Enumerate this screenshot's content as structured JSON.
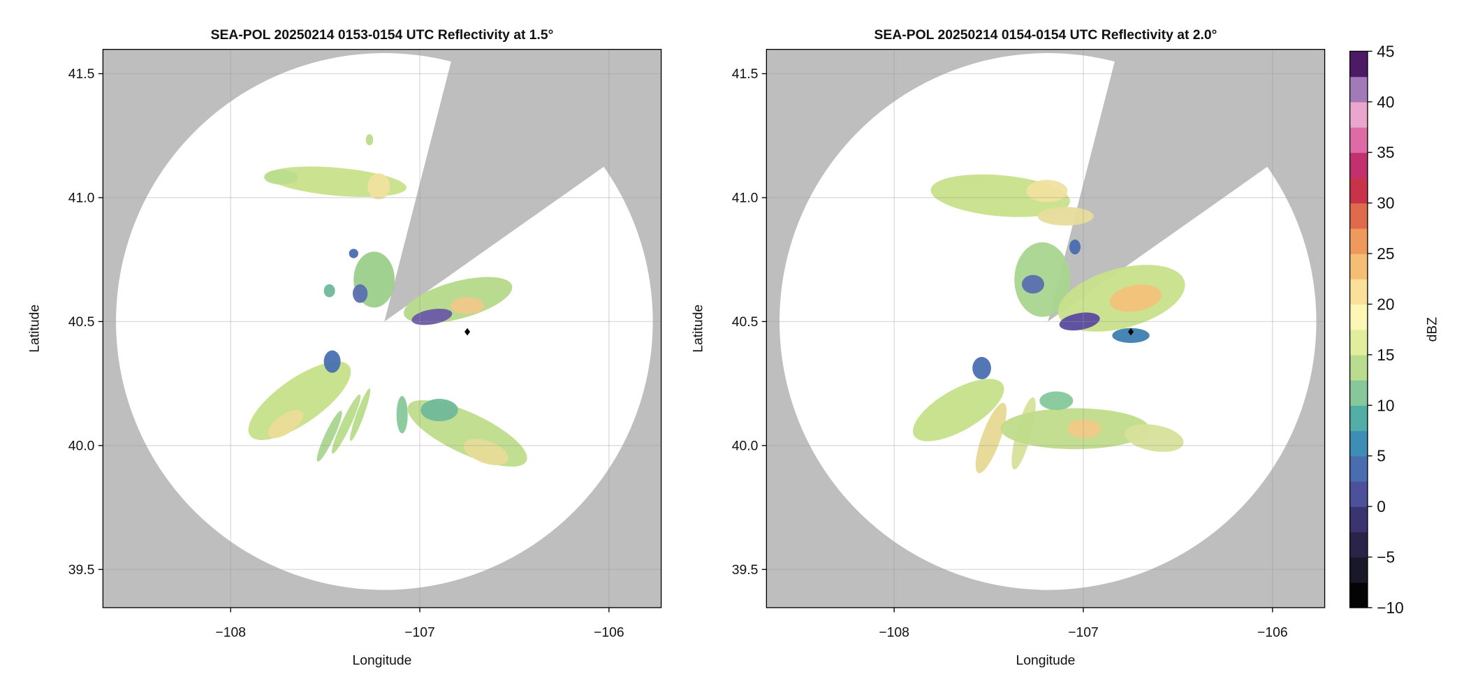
{
  "chart_data": [
    {
      "type": "radar-ppi",
      "title": "SEA-POL 20250214 0153-0154 UTC Reflectivity at 1.5°",
      "xlabel": "Longitude",
      "ylabel": "Latitude",
      "xlim": [
        -108.675,
        -105.724
      ],
      "ylim": [
        39.346,
        41.598
      ],
      "xticks": [
        {
          "value": -108,
          "label": "−108"
        },
        {
          "value": -107,
          "label": "−107"
        },
        {
          "value": -106,
          "label": "−106"
        }
      ],
      "yticks": [
        39.5,
        {
          "value": 40,
          "label": "40.0"
        },
        40.5,
        {
          "value": 41,
          "label": "41.0"
        },
        41.5
      ],
      "grid": true
    },
    {
      "type": "radar-ppi",
      "title": "SEA-POL 20250214 0154-0154 UTC Reflectivity at 2.0°",
      "xlabel": "Longitude",
      "ylabel": "Latitude",
      "xlim": [
        -108.675,
        -105.724
      ],
      "ylim": [
        39.346,
        41.598
      ],
      "xticks": [
        {
          "value": -108,
          "label": "−108"
        },
        {
          "value": -107,
          "label": "−107"
        },
        {
          "value": -106,
          "label": "−106"
        }
      ],
      "yticks": [
        39.5,
        {
          "value": 40,
          "label": "40.0"
        },
        40.5,
        {
          "value": 41,
          "label": "41.0"
        },
        41.5
      ],
      "grid": true,
      "colorbar": {
        "label": "dBZ",
        "lim": [
          -10,
          45
        ],
        "ticks": [
          {
            "value": -10,
            "label": "−10"
          },
          {
            "value": -5,
            "label": "−5"
          },
          0,
          5,
          10,
          15,
          20,
          25,
          30,
          35,
          40,
          45
        ],
        "colors": [
          "#040404",
          "#181828",
          "#2a2448",
          "#3a3470",
          "#4c519a",
          "#4a6db0",
          "#3d8eb6",
          "#50aea6",
          "#86c89a",
          "#b9dc8e",
          "#e2ee9c",
          "#fdf7b6",
          "#fbe09a",
          "#f6bd74",
          "#ef9a5c",
          "#df6a4c",
          "#c8334a",
          "#c2306e",
          "#de6aa6",
          "#eaa6cc",
          "#a37ab8",
          "#4d1a66"
        ]
      }
    }
  ]
}
